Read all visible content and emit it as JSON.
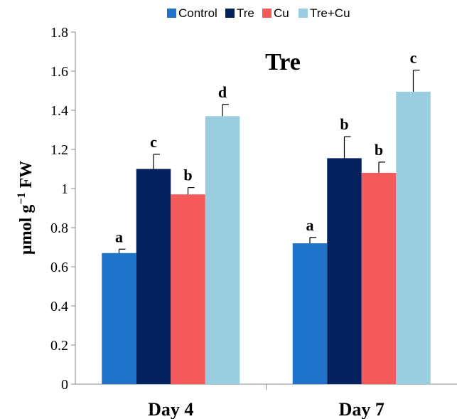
{
  "chart_data": {
    "type": "bar",
    "title": "Tre",
    "ylabel_parts": [
      "µmol g",
      "−1",
      " FW"
    ],
    "xlabel": "",
    "categories": [
      "Day 4",
      "Day 7"
    ],
    "ylim": [
      0,
      1.8
    ],
    "yticks": [
      0,
      0.2,
      0.4,
      0.6,
      0.8,
      1,
      1.2,
      1.4,
      1.6,
      1.8
    ],
    "ytick_labels": [
      "0",
      "0.2",
      "0.4",
      "0.6",
      "0.8",
      "1",
      "1.2",
      "1.4",
      "1.6",
      "1.8"
    ],
    "legend_position": "top",
    "grid": false,
    "series": [
      {
        "name": "Control",
        "color": "#1e73c8",
        "values": [
          0.67,
          0.72
        ],
        "errors": [
          0.02,
          0.03
        ],
        "labels": [
          "a",
          "a"
        ]
      },
      {
        "name": "Tre",
        "color": "#04215e",
        "values": [
          1.1,
          1.155
        ],
        "errors": [
          0.075,
          0.11
        ],
        "labels": [
          "c",
          "b"
        ]
      },
      {
        "name": "Cu",
        "color": "#f45a5a",
        "values": [
          0.97,
          1.08
        ],
        "errors": [
          0.035,
          0.055
        ],
        "labels": [
          "b",
          "b"
        ]
      },
      {
        "name": "Tre+Cu",
        "color": "#99cddf",
        "values": [
          1.37,
          1.495
        ],
        "errors": [
          0.06,
          0.11
        ],
        "labels": [
          "d",
          "c"
        ]
      }
    ]
  }
}
